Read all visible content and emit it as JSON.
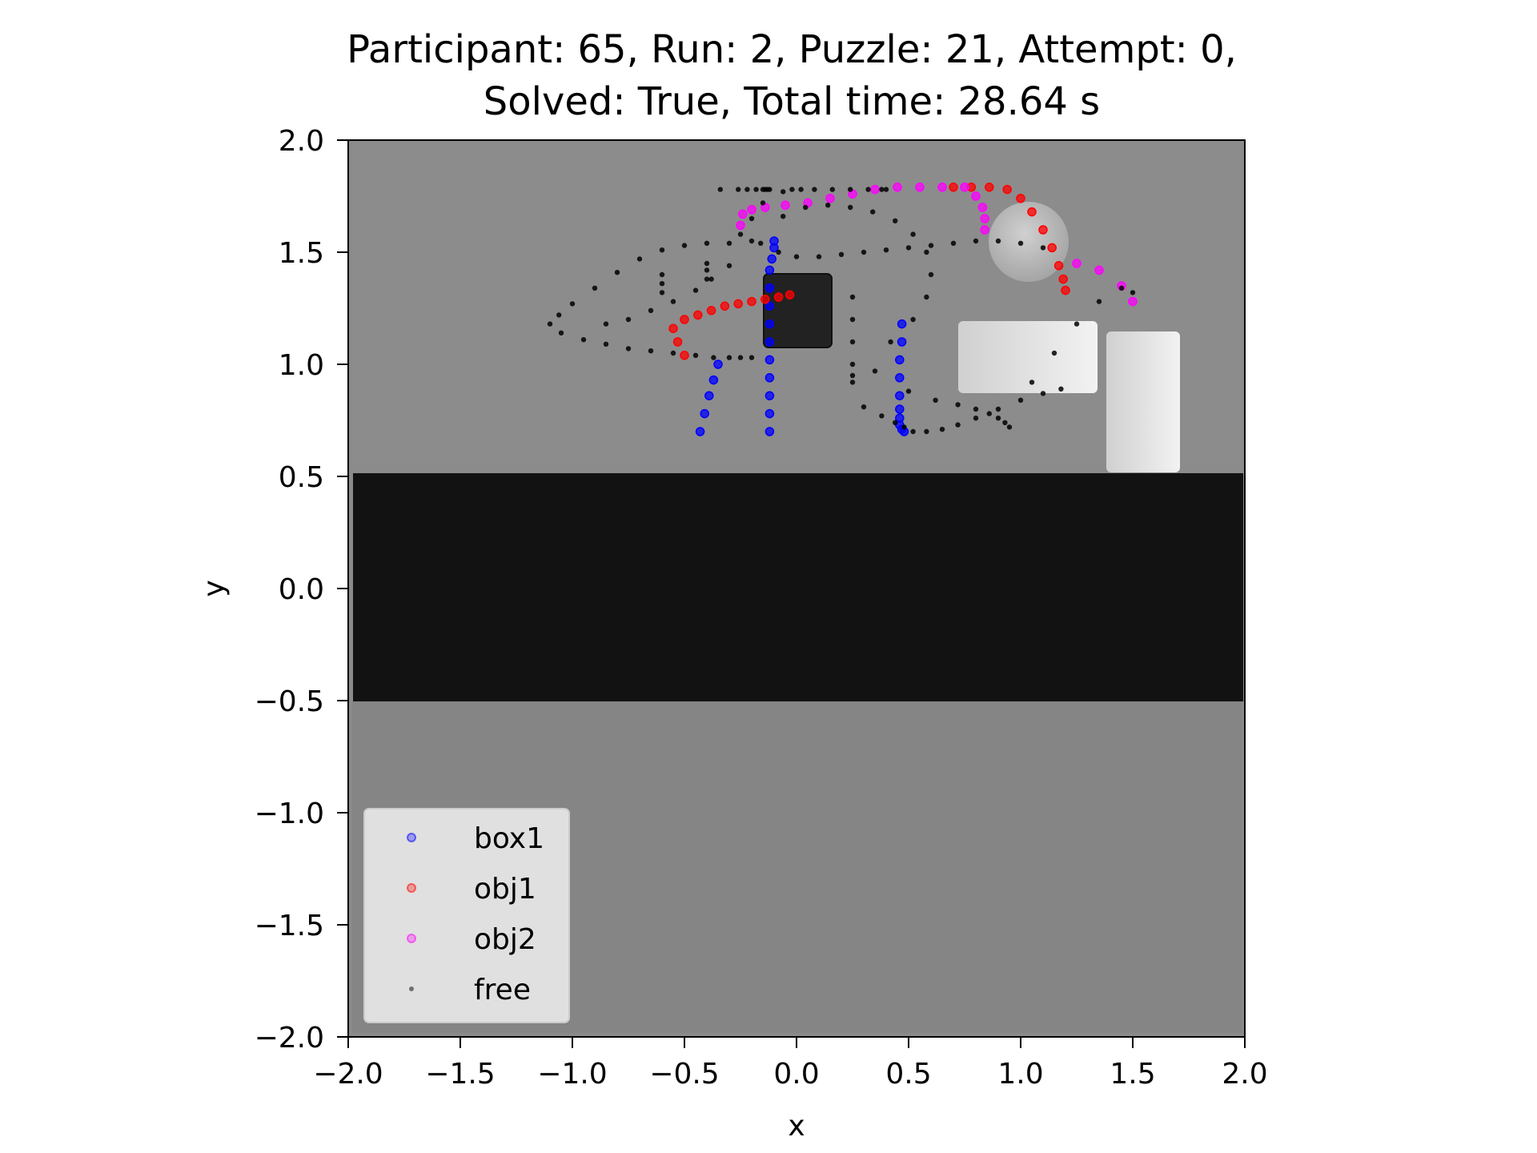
{
  "chart_data": {
    "type": "scatter",
    "title_line1": "Participant: 65, Run: 2, Puzzle: 21, Attempt: 0,",
    "title_line2": "Solved: True, Total time: 28.64 s",
    "xlabel": "x",
    "ylabel": "y",
    "xlim": [
      -2.0,
      2.0
    ],
    "ylim": [
      -2.0,
      2.0
    ],
    "xticks": [
      "−2.0",
      "−1.5",
      "−1.0",
      "−0.5",
      "0.0",
      "0.5",
      "1.0",
      "1.5",
      "2.0"
    ],
    "yticks": [
      "2.0",
      "1.5",
      "1.0",
      "0.5",
      "0.0",
      "−0.5",
      "−1.0",
      "−1.5",
      "−2.0"
    ],
    "grid": false,
    "legend_placement": "lower-left",
    "colors": {
      "box1": "#0000ff",
      "obj1": "#ff0000",
      "obj2": "#ff00ff",
      "free": "#000000",
      "background": "#8a8a8a",
      "table_band": "#121212"
    },
    "series": [
      {
        "name": "box1",
        "color": "#0000ff",
        "x": [
          -0.12,
          -0.12,
          -0.12,
          -0.12,
          -0.12,
          -0.12,
          -0.12,
          -0.12,
          -0.12,
          -0.12,
          -0.11,
          -0.1,
          -0.1,
          0.47,
          0.47,
          0.46,
          0.46,
          0.46,
          0.46,
          0.46,
          0.46,
          0.47,
          0.48,
          -0.35,
          -0.37,
          -0.39,
          -0.41,
          -0.43
        ],
        "y": [
          0.7,
          0.78,
          0.86,
          0.94,
          1.02,
          1.1,
          1.18,
          1.26,
          1.34,
          1.42,
          1.47,
          1.52,
          1.55,
          1.18,
          1.1,
          1.02,
          0.94,
          0.86,
          0.8,
          0.76,
          0.73,
          0.71,
          0.7,
          1.0,
          0.93,
          0.86,
          0.78,
          0.7
        ]
      },
      {
        "name": "obj1",
        "color": "#ff0000",
        "x": [
          -0.5,
          -0.53,
          -0.55,
          -0.5,
          -0.44,
          -0.38,
          -0.32,
          -0.26,
          -0.2,
          -0.14,
          -0.08,
          -0.03,
          0.7,
          0.78,
          0.86,
          0.94,
          1.0,
          1.05,
          1.1,
          1.14,
          1.17,
          1.19,
          1.2
        ],
        "y": [
          1.04,
          1.1,
          1.16,
          1.2,
          1.22,
          1.24,
          1.26,
          1.27,
          1.28,
          1.29,
          1.3,
          1.31,
          1.79,
          1.79,
          1.79,
          1.78,
          1.74,
          1.68,
          1.6,
          1.52,
          1.44,
          1.38,
          1.33
        ]
      },
      {
        "name": "obj2",
        "color": "#ff00ff",
        "x": [
          -0.25,
          -0.24,
          -0.2,
          -0.14,
          -0.05,
          0.05,
          0.15,
          0.25,
          0.35,
          0.45,
          0.55,
          0.65,
          0.75,
          0.8,
          0.83,
          0.84,
          0.84,
          1.25,
          1.35,
          1.45,
          1.5
        ],
        "y": [
          1.62,
          1.67,
          1.69,
          1.7,
          1.71,
          1.72,
          1.74,
          1.76,
          1.78,
          1.79,
          1.79,
          1.79,
          1.79,
          1.75,
          1.7,
          1.65,
          1.6,
          1.45,
          1.42,
          1.35,
          1.28
        ]
      },
      {
        "name": "free",
        "color": "#000000",
        "x": [
          -0.2,
          -0.3,
          -0.4,
          -0.5,
          -0.6,
          -0.7,
          -0.8,
          -0.9,
          -1.0,
          -1.06,
          -1.1,
          -1.05,
          -0.95,
          -0.85,
          -0.75,
          -0.65,
          -0.55,
          -0.45,
          -0.37,
          -0.3,
          -0.25,
          -0.2,
          -0.16,
          -0.08,
          0.0,
          0.1,
          0.2,
          0.3,
          0.4,
          0.5,
          0.6,
          0.7,
          0.8,
          0.9,
          1.0,
          1.1,
          -0.06,
          0.04,
          0.14,
          0.24,
          0.34,
          0.44,
          0.52,
          0.58,
          0.6,
          0.58,
          0.52,
          0.42,
          0.35,
          0.5,
          0.62,
          0.72,
          0.8,
          0.86,
          0.9,
          0.93,
          0.95,
          1.05,
          1.15,
          1.25,
          1.35,
          1.45,
          1.5,
          0.3,
          0.38,
          0.44,
          0.48,
          0.52,
          0.58,
          0.65,
          0.72,
          0.8,
          0.9,
          1.0,
          1.1,
          1.18,
          -0.85,
          -0.75,
          -0.65,
          -0.55,
          -0.45,
          -0.38,
          -0.3,
          -0.6,
          -0.6,
          -0.6,
          -0.4,
          -0.4,
          -0.4,
          -0.25,
          -0.2,
          -0.15,
          -0.06,
          -0.02,
          0.02,
          0.08,
          0.16,
          0.24,
          0.32,
          0.38,
          0.4,
          0.25,
          0.25,
          0.25,
          0.25,
          0.25,
          0.25,
          -0.12,
          -0.13,
          -0.14,
          -0.15,
          -0.18,
          -0.22,
          -0.26,
          -0.34
        ],
        "y": [
          1.55,
          1.54,
          1.54,
          1.53,
          1.51,
          1.47,
          1.41,
          1.34,
          1.27,
          1.22,
          1.18,
          1.14,
          1.11,
          1.09,
          1.07,
          1.06,
          1.05,
          1.04,
          1.03,
          1.03,
          1.03,
          1.03,
          1.54,
          1.5,
          1.48,
          1.48,
          1.49,
          1.5,
          1.51,
          1.52,
          1.53,
          1.54,
          1.55,
          1.55,
          1.54,
          1.52,
          1.66,
          1.7,
          1.71,
          1.7,
          1.68,
          1.64,
          1.58,
          1.5,
          1.4,
          1.3,
          1.2,
          1.1,
          0.97,
          0.88,
          0.84,
          0.82,
          0.8,
          0.78,
          0.76,
          0.74,
          0.72,
          0.92,
          1.05,
          1.18,
          1.28,
          1.34,
          1.32,
          0.81,
          0.77,
          0.74,
          0.72,
          0.7,
          0.7,
          0.71,
          0.73,
          0.76,
          0.8,
          0.84,
          0.87,
          0.89,
          1.18,
          1.2,
          1.24,
          1.28,
          1.33,
          1.38,
          1.44,
          1.4,
          1.36,
          1.32,
          1.45,
          1.42,
          1.38,
          1.58,
          1.65,
          1.72,
          1.77,
          1.78,
          1.78,
          1.78,
          1.78,
          1.78,
          1.78,
          1.78,
          1.78,
          1.3,
          1.2,
          1.1,
          1.0,
          0.95,
          0.92,
          1.78,
          1.78,
          1.78,
          1.78,
          1.78,
          1.78,
          1.78,
          1.78
        ]
      }
    ]
  }
}
